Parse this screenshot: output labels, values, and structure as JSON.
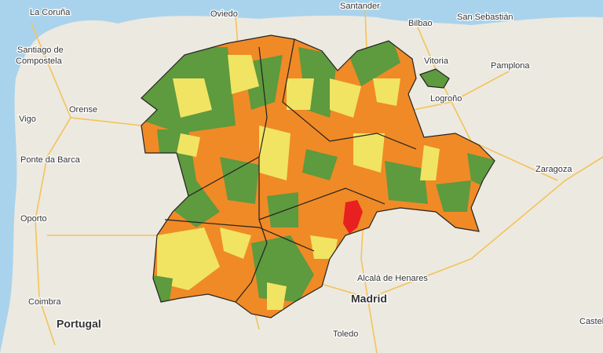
{
  "places": [
    {
      "label": "La Coruña"
    },
    {
      "label": "Oviedo"
    },
    {
      "label": "Santander"
    },
    {
      "label": "Bilbao"
    },
    {
      "label": "San Sebastián"
    },
    {
      "label": "Santiago de"
    },
    {
      "label": "Compostela"
    },
    {
      "label": "Vitoria"
    },
    {
      "label": "Pamplona"
    },
    {
      "label": "Logroño"
    },
    {
      "label": "Vigo"
    },
    {
      "label": "Orense"
    },
    {
      "label": "Ponte da Barca"
    },
    {
      "label": "Zaragoza"
    },
    {
      "label": "Oporto"
    },
    {
      "label": "Alcalá de Henares"
    },
    {
      "label": "Madrid"
    },
    {
      "label": "Coimbra"
    },
    {
      "label": "Portugal"
    },
    {
      "label": "Toledo"
    },
    {
      "label": "Castel"
    }
  ]
}
